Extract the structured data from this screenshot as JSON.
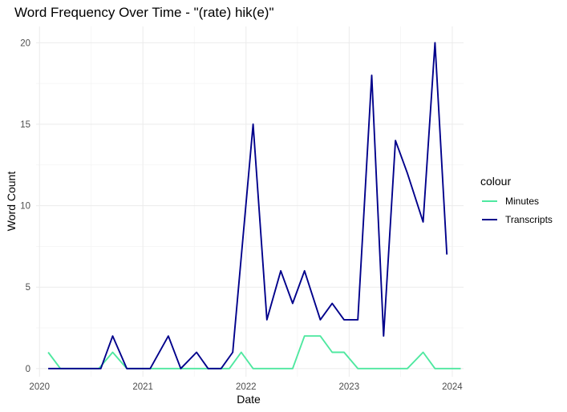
{
  "chart_data": {
    "type": "line",
    "title": "Word Frequency Over Time - \"(rate) hik(e)\"",
    "xlabel": "Date",
    "ylabel": "Word Count",
    "x_ticks": [
      "2020",
      "2021",
      "2022",
      "2023",
      "2024"
    ],
    "y_ticks": [
      0,
      5,
      10,
      15,
      20
    ],
    "xlim": [
      "2019-12-20",
      "2024-02-10"
    ],
    "ylim": [
      -0.5,
      21
    ],
    "grid": true,
    "legend": {
      "title": "colour",
      "position": "right"
    },
    "series": [
      {
        "name": "Minutes",
        "color": "#4fe8a0",
        "points": [
          [
            "2020-02-01",
            1
          ],
          [
            "2020-03-15",
            0
          ],
          [
            "2020-04-29",
            0
          ],
          [
            "2020-06-10",
            0
          ],
          [
            "2020-07-29",
            0
          ],
          [
            "2020-09-16",
            1
          ],
          [
            "2020-11-05",
            0
          ],
          [
            "2020-12-16",
            0
          ],
          [
            "2021-01-27",
            0
          ],
          [
            "2021-03-17",
            0
          ],
          [
            "2021-04-28",
            0
          ],
          [
            "2021-06-16",
            0
          ],
          [
            "2021-07-28",
            0
          ],
          [
            "2021-09-22",
            0
          ],
          [
            "2021-11-03",
            0
          ],
          [
            "2021-12-15",
            1
          ],
          [
            "2022-01-26",
            0
          ],
          [
            "2022-03-16",
            0
          ],
          [
            "2022-05-04",
            0
          ],
          [
            "2022-06-15",
            0
          ],
          [
            "2022-07-27",
            2
          ],
          [
            "2022-09-21",
            2
          ],
          [
            "2022-11-02",
            1
          ],
          [
            "2022-12-14",
            1
          ],
          [
            "2023-02-01",
            0
          ],
          [
            "2023-03-22",
            0
          ],
          [
            "2023-05-03",
            0
          ],
          [
            "2023-06-14",
            0
          ],
          [
            "2023-07-26",
            0
          ],
          [
            "2023-09-20",
            1
          ],
          [
            "2023-11-01",
            0
          ],
          [
            "2023-12-13",
            0
          ],
          [
            "2024-01-31",
            0
          ]
        ]
      },
      {
        "name": "Transcripts",
        "color": "#00008b",
        "points": [
          [
            "2020-02-01",
            0
          ],
          [
            "2020-04-01",
            0
          ],
          [
            "2020-08-05",
            0
          ],
          [
            "2020-09-16",
            2
          ],
          [
            "2020-11-05",
            0
          ],
          [
            "2021-01-27",
            0
          ],
          [
            "2021-04-01",
            2
          ],
          [
            "2021-05-15",
            0
          ],
          [
            "2021-07-10",
            1
          ],
          [
            "2021-08-20",
            0
          ],
          [
            "2021-10-05",
            0
          ],
          [
            "2021-11-15",
            1
          ],
          [
            "2022-01-26",
            15
          ],
          [
            "2022-03-16",
            3
          ],
          [
            "2022-05-04",
            6
          ],
          [
            "2022-06-15",
            4
          ],
          [
            "2022-07-27",
            6
          ],
          [
            "2022-09-21",
            3
          ],
          [
            "2022-11-02",
            4
          ],
          [
            "2022-12-14",
            3
          ],
          [
            "2023-02-01",
            3
          ],
          [
            "2023-03-22",
            18
          ],
          [
            "2023-05-03",
            2
          ],
          [
            "2023-06-14",
            14
          ],
          [
            "2023-07-26",
            12
          ],
          [
            "2023-09-20",
            9
          ],
          [
            "2023-11-01",
            20
          ],
          [
            "2023-12-13",
            7
          ]
        ]
      }
    ]
  }
}
